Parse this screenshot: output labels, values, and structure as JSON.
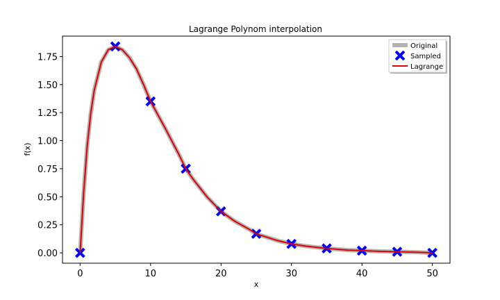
{
  "chart_data": {
    "type": "line",
    "title": "Lagrange Polynom interpolation",
    "xlabel": "x",
    "ylabel": "f(x)",
    "xlim": [
      -2.5,
      52.5
    ],
    "ylim": [
      -0.092,
      1.932
    ],
    "xticks": [
      0,
      10,
      20,
      30,
      40,
      50
    ],
    "yticks": [
      0.0,
      0.25,
      0.5,
      0.75,
      1.0,
      1.25,
      1.5,
      1.75
    ],
    "xtick_labels": [
      "0",
      "10",
      "20",
      "30",
      "40",
      "50"
    ],
    "ytick_labels": [
      "0.00",
      "0.25",
      "0.50",
      "0.75",
      "1.00",
      "1.25",
      "1.50",
      "1.75"
    ],
    "legend_position": "top-right",
    "colors": {
      "original": "#b3b3b3",
      "sampled": "#0000ff",
      "lagrange": "#e00000"
    },
    "series": [
      {
        "name": "Original",
        "style": "line",
        "x": [
          0,
          0.5,
          1,
          1.5,
          2,
          3,
          4,
          5,
          6,
          7,
          8,
          9,
          10,
          12,
          14,
          15,
          16,
          18,
          20,
          22,
          24,
          25,
          26,
          28,
          30,
          32,
          35,
          38,
          40,
          42,
          45,
          48,
          50
        ],
        "y": [
          0.0,
          0.53,
          0.95,
          1.24,
          1.45,
          1.7,
          1.81,
          1.84,
          1.81,
          1.74,
          1.64,
          1.5,
          1.35,
          1.12,
          0.88,
          0.75,
          0.66,
          0.5,
          0.37,
          0.28,
          0.21,
          0.17,
          0.15,
          0.11,
          0.08,
          0.06,
          0.04,
          0.025,
          0.02,
          0.015,
          0.01,
          0.005,
          0.0
        ]
      },
      {
        "name": "Sampled",
        "style": "markers",
        "x": [
          0,
          5,
          10,
          15,
          20,
          25,
          30,
          35,
          40,
          45,
          50
        ],
        "y": [
          0.0,
          1.84,
          1.35,
          0.75,
          0.37,
          0.17,
          0.08,
          0.04,
          0.02,
          0.01,
          0.0
        ]
      },
      {
        "name": "Lagrange",
        "style": "line",
        "x": [
          0,
          0.5,
          1,
          1.5,
          2,
          3,
          4,
          5,
          6,
          7,
          8,
          9,
          10,
          12,
          14,
          15,
          16,
          18,
          20,
          22,
          24,
          25,
          26,
          28,
          30,
          32,
          35,
          38,
          40,
          42,
          45,
          48,
          50
        ],
        "y": [
          0.0,
          0.53,
          0.95,
          1.24,
          1.45,
          1.7,
          1.81,
          1.84,
          1.81,
          1.74,
          1.64,
          1.5,
          1.35,
          1.12,
          0.88,
          0.75,
          0.66,
          0.5,
          0.37,
          0.28,
          0.21,
          0.17,
          0.15,
          0.11,
          0.08,
          0.06,
          0.04,
          0.025,
          0.02,
          0.015,
          0.01,
          0.005,
          0.0
        ]
      }
    ]
  }
}
